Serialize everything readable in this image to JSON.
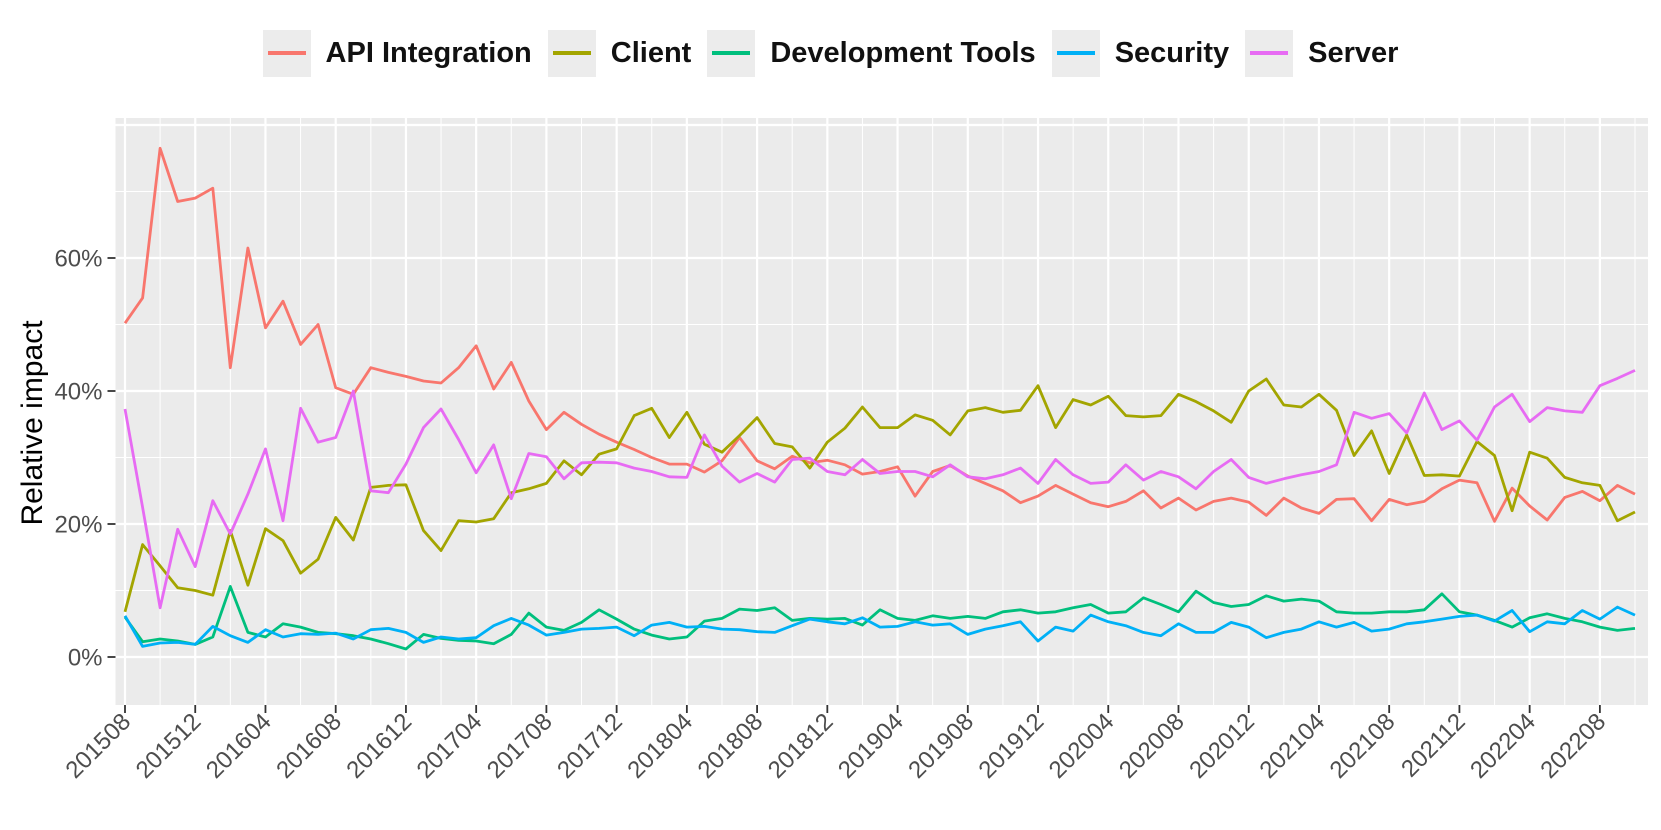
{
  "chart_data": {
    "type": "line",
    "title": "",
    "xlabel": "",
    "ylabel": "Relative impact",
    "legend_position": "top",
    "grid": "on",
    "panel_bg": "#ebebeb",
    "grid_color": "#ffffff",
    "tick_color": "#333333",
    "tick_label_color": "#4d4d4d",
    "y_tick_labels": [
      "0%",
      "20%",
      "40%",
      "60%"
    ],
    "y_tick_values": [
      0,
      20,
      40,
      60
    ],
    "ylim": [
      -7,
      81
    ],
    "x_tick_labels": [
      "201508",
      "201512",
      "201604",
      "201608",
      "201612",
      "201704",
      "201708",
      "201712",
      "201804",
      "201808",
      "201812",
      "201904",
      "201908",
      "201912",
      "202004",
      "202008",
      "202012",
      "202104",
      "202108",
      "202112",
      "202204",
      "202208"
    ],
    "x": [
      "201508",
      "201509",
      "201510",
      "201511",
      "201512",
      "201601",
      "201602",
      "201603",
      "201604",
      "201605",
      "201606",
      "201607",
      "201608",
      "201609",
      "201610",
      "201611",
      "201612",
      "201701",
      "201702",
      "201703",
      "201704",
      "201705",
      "201706",
      "201707",
      "201708",
      "201709",
      "201710",
      "201711",
      "201712",
      "201801",
      "201802",
      "201803",
      "201804",
      "201805",
      "201806",
      "201807",
      "201808",
      "201809",
      "201810",
      "201811",
      "201812",
      "201901",
      "201902",
      "201903",
      "201904",
      "201905",
      "201906",
      "201907",
      "201908",
      "201909",
      "201910",
      "201911",
      "201912",
      "202001",
      "202002",
      "202003",
      "202004",
      "202005",
      "202006",
      "202007",
      "202008",
      "202009",
      "202010",
      "202011",
      "202012",
      "202101",
      "202102",
      "202103",
      "202104",
      "202105",
      "202106",
      "202107",
      "202108",
      "202109",
      "202110",
      "202111",
      "202112",
      "202201",
      "202202",
      "202203",
      "202204",
      "202205",
      "202206",
      "202207",
      "202208",
      "202209",
      "202210"
    ],
    "series": [
      {
        "name": "API Integration",
        "color": "#F8766D",
        "values": [
          50.2,
          54,
          76.5,
          68.5,
          69,
          70.5,
          43.5,
          61.5,
          49.5,
          53.5,
          47,
          50,
          40.5,
          39.5,
          43.5,
          42.8,
          42.2,
          41.5,
          41.2,
          43.5,
          46.8,
          40.3,
          44.3,
          38.5,
          34.2,
          36.8,
          35,
          33.5,
          32.3,
          31.2,
          30,
          29,
          29,
          27.8,
          29.5,
          33,
          29.5,
          28.3,
          30.2,
          29.2,
          29.6,
          28.9,
          27.5,
          27.9,
          28.6,
          24.2,
          27.9,
          28.8,
          27.2,
          26.1,
          25,
          23.2,
          24.2,
          25.8,
          24.5,
          23.2,
          22.6,
          23.4,
          25,
          22.4,
          23.9,
          22.1,
          23.4,
          23.9,
          23.3,
          21.3,
          23.9,
          22.4,
          21.6,
          23.7,
          23.8,
          20.5,
          23.7,
          22.9,
          23.4,
          25.3,
          26.6,
          26.2,
          20.4,
          25.4,
          22.7,
          20.6,
          24,
          24.9,
          23.5,
          25.8,
          24.5
        ]
      },
      {
        "name": "Client",
        "color": "#A3A500",
        "values": [
          6.8,
          16.9,
          13.7,
          10.4,
          10,
          9.3,
          19,
          10.8,
          19.3,
          17.5,
          12.6,
          14.7,
          21,
          17.6,
          25.5,
          25.8,
          25.9,
          19,
          16,
          20.5,
          20.3,
          20.8,
          24.7,
          25.3,
          26.1,
          29.5,
          27.4,
          30.5,
          31.3,
          36.3,
          37.4,
          33,
          36.8,
          32,
          30.8,
          33.3,
          36,
          32.1,
          31.6,
          28.4,
          32.3,
          34.4,
          37.6,
          34.5,
          34.5,
          36.4,
          35.6,
          33.4,
          37,
          37.5,
          36.8,
          37.1,
          40.8,
          34.5,
          38.7,
          37.9,
          39.2,
          36.3,
          36.1,
          36.3,
          39.5,
          38.4,
          37,
          35.3,
          40,
          41.8,
          37.9,
          37.6,
          39.5,
          37.1,
          30.3,
          34,
          27.6,
          33.4,
          27.3,
          27.4,
          27.2,
          32.4,
          30.3,
          22,
          30.8,
          29.9,
          27,
          26.2,
          25.8,
          20.5,
          21.8
        ]
      },
      {
        "name": "Development Tools",
        "color": "#00BF7D",
        "values": [
          6,
          2.3,
          2.7,
          2.4,
          1.9,
          3,
          10.6,
          3.7,
          3,
          5,
          4.5,
          3.7,
          3.5,
          3.2,
          2.7,
          2,
          1.2,
          3.4,
          2.8,
          2.5,
          2.4,
          2,
          3.4,
          6.6,
          4.5,
          4,
          5.2,
          7.1,
          5.7,
          4.2,
          3.3,
          2.7,
          3,
          5.4,
          5.8,
          7.2,
          7,
          7.4,
          5.5,
          5.8,
          5.7,
          5.8,
          4.8,
          7.1,
          5.8,
          5.5,
          6.2,
          5.8,
          6.1,
          5.8,
          6.8,
          7.1,
          6.6,
          6.8,
          7.4,
          7.9,
          6.6,
          6.8,
          8.9,
          7.9,
          6.8,
          9.9,
          8.2,
          7.6,
          7.9,
          9.2,
          8.4,
          8.7,
          8.4,
          6.8,
          6.6,
          6.6,
          6.8,
          6.8,
          7.1,
          9.5,
          6.8,
          6.3,
          5.5,
          4.5,
          5.9,
          6.5,
          5.8,
          5.3,
          4.5,
          4,
          4.3
        ]
      },
      {
        "name": "Security",
        "color": "#00B0F6",
        "values": [
          6.2,
          1.6,
          2.1,
          2.2,
          1.9,
          4.6,
          3.2,
          2.2,
          4.1,
          3,
          3.5,
          3.4,
          3.6,
          2.7,
          4.1,
          4.3,
          3.7,
          2.2,
          3,
          2.7,
          2.9,
          4.7,
          5.8,
          4.8,
          3.3,
          3.7,
          4.2,
          4.3,
          4.5,
          3.2,
          4.8,
          5.2,
          4.5,
          4.6,
          4.2,
          4.1,
          3.8,
          3.7,
          4.7,
          5.7,
          5.3,
          5,
          5.9,
          4.5,
          4.6,
          5.3,
          4.8,
          5,
          3.4,
          4.2,
          4.7,
          5.3,
          2.4,
          4.5,
          3.9,
          6.3,
          5.3,
          4.7,
          3.7,
          3.2,
          5,
          3.7,
          3.7,
          5.2,
          4.5,
          2.9,
          3.7,
          4.2,
          5.3,
          4.5,
          5.2,
          3.9,
          4.2,
          5,
          5.3,
          5.7,
          6.1,
          6.3,
          5.4,
          7,
          3.8,
          5.3,
          5,
          7,
          5.7,
          7.5,
          6.3
        ]
      },
      {
        "name": "Server",
        "color": "#E76BF3",
        "values": [
          37.3,
          22.5,
          7.4,
          19.2,
          13.6,
          23.5,
          18.5,
          24.5,
          31.3,
          20.5,
          37.4,
          32.3,
          33,
          40,
          25,
          24.7,
          29,
          34.5,
          37.3,
          32.7,
          27.7,
          31.9,
          23.8,
          30.6,
          30.1,
          26.8,
          29.2,
          29.3,
          29.2,
          28.4,
          27.9,
          27.1,
          27,
          33.4,
          28.7,
          26.3,
          27.6,
          26.3,
          29.7,
          29.9,
          27.9,
          27.4,
          29.7,
          27.6,
          27.9,
          27.9,
          27.1,
          28.9,
          27.1,
          26.8,
          27.4,
          28.4,
          26.1,
          29.7,
          27.4,
          26.1,
          26.3,
          28.9,
          26.6,
          27.9,
          27.1,
          25.3,
          27.9,
          29.7,
          27,
          26.1,
          26.8,
          27.4,
          27.9,
          28.9,
          36.8,
          35.9,
          36.6,
          33.7,
          39.7,
          34.2,
          35.5,
          32.6,
          37.6,
          39.5,
          35.4,
          37.5,
          37,
          36.8,
          40.8,
          41.9,
          43.1
        ]
      }
    ]
  }
}
